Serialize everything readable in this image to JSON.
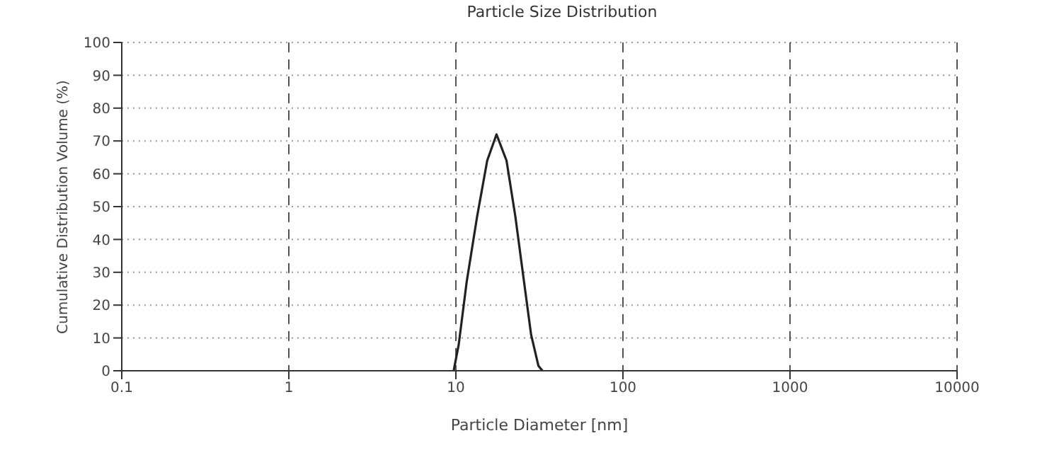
{
  "chart_data": {
    "type": "line",
    "title": "Particle Size Distribution",
    "xlabel": "Particle Diameter [nm]",
    "ylabel": "Cumulative Distribution Volume (%)",
    "x": [
      9.7,
      10.4,
      11.6,
      13.4,
      15.4,
      17.5,
      20.1,
      22.7,
      25.6,
      28.2,
      31.2,
      33
    ],
    "series": [
      {
        "color": "#222222",
        "values": [
          0,
          8,
          27,
          47,
          64,
          72,
          64,
          47,
          27,
          11,
          1.5,
          0
        ]
      }
    ],
    "log": "x",
    "xlim": [
      0.1,
      10000
    ],
    "xticks": [
      0.1,
      1,
      10,
      100,
      1000,
      10000
    ],
    "ylim": [
      0,
      100
    ],
    "yticks": [
      0,
      10,
      20,
      30,
      40,
      50,
      60,
      70,
      80,
      90,
      100
    ],
    "grid": true,
    "marker": "none",
    "line_style": "solid"
  }
}
